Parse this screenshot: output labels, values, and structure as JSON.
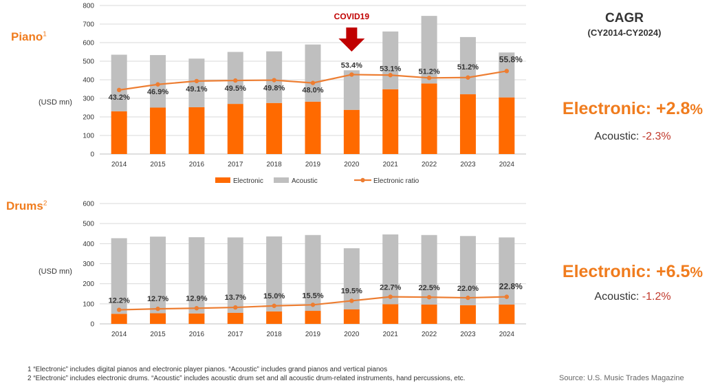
{
  "colors": {
    "electronic": "#ff6a00",
    "acoustic": "#bfbfbf",
    "ratio": "#ed7d31",
    "accent": "#f07c1e",
    "covid": "#c00000",
    "negative": "#c0392b"
  },
  "piano": {
    "title": "Piano",
    "sup": "1",
    "unit": "(USD mn)",
    "covid_label": "COVID19",
    "legend": [
      "Electronic",
      "Acoustic",
      "Electronic ratio"
    ],
    "cagr_title": "CAGR",
    "cagr_period": "(CY2014-CY2024)",
    "cagr_electronic_label": "Electronic: +2.8",
    "cagr_electronic_pct": "%",
    "cagr_acoustic_label": "Acoustic: ",
    "cagr_acoustic_value": "-2.3%"
  },
  "drums": {
    "title": "Drums",
    "sup": "2",
    "unit": "(USD mn)",
    "cagr_electronic_label": "Electronic: +6.5",
    "cagr_electronic_pct": "%",
    "cagr_acoustic_label": "Acoustic: ",
    "cagr_acoustic_value": "-1.2%"
  },
  "footnotes": {
    "note1": "1 “Electronic” includes digital pianos and electronic player pianos. “Acoustic” includes grand pianos and vertical pianos",
    "note2": "2 “Electronic” includes electronic drums. “Acoustic” includes acoustic drum set and all acoustic drum-related instruments, hand percussions, etc.",
    "source": "Source: U.S. Music Trades Magazine"
  },
  "chart_data": [
    {
      "type": "bar",
      "stacked": true,
      "categories": [
        "2014",
        "2015",
        "2016",
        "2017",
        "2018",
        "2019",
        "2020",
        "2021",
        "2022",
        "2023",
        "2024"
      ],
      "series": [
        {
          "name": "Electronic",
          "values": [
            230,
            250,
            252,
            270,
            275,
            282,
            238,
            349,
            380,
            322,
            305
          ]
        },
        {
          "name": "Acoustic",
          "values": [
            305,
            283,
            262,
            280,
            278,
            308,
            213,
            311,
            364,
            308,
            242
          ]
        }
      ],
      "line_series": {
        "name": "Electronic ratio",
        "values": [
          345,
          375,
          393,
          396,
          398,
          383,
          428,
          425,
          410,
          412,
          447
        ]
      },
      "ratio_labels": [
        "43.2%",
        "46.9%",
        "49.1%",
        "49.5%",
        "49.8%",
        "48.0%",
        "53.4%",
        "53.1%",
        "51.2%",
        "51.2%",
        "55.8%"
      ],
      "yticks": [
        0,
        100,
        200,
        300,
        400,
        500,
        600,
        700,
        800
      ],
      "ylim": [
        0,
        800
      ]
    },
    {
      "type": "bar",
      "stacked": true,
      "categories": [
        "2014",
        "2015",
        "2016",
        "2017",
        "2018",
        "2019",
        "2020",
        "2021",
        "2022",
        "2023",
        "2024"
      ],
      "series": [
        {
          "name": "Electronic",
          "values": [
            50,
            53,
            52,
            55,
            62,
            65,
            72,
            98,
            96,
            93,
            96
          ]
        },
        {
          "name": "Acoustic",
          "values": [
            377,
            382,
            380,
            376,
            374,
            378,
            305,
            348,
            347,
            345,
            335
          ]
        }
      ],
      "line_series": {
        "name": "Electronic ratio",
        "values": [
          70,
          75,
          78,
          82,
          90,
          95,
          115,
          135,
          133,
          130,
          135
        ]
      },
      "ratio_labels": [
        "12.2%",
        "12.7%",
        "12.9%",
        "13.7%",
        "15.0%",
        "15.5%",
        "19.5%",
        "22.7%",
        "22.5%",
        "22.0%",
        "22.8%"
      ],
      "yticks": [
        0,
        100,
        200,
        300,
        400,
        500,
        600
      ],
      "ylim": [
        0,
        600
      ]
    }
  ]
}
